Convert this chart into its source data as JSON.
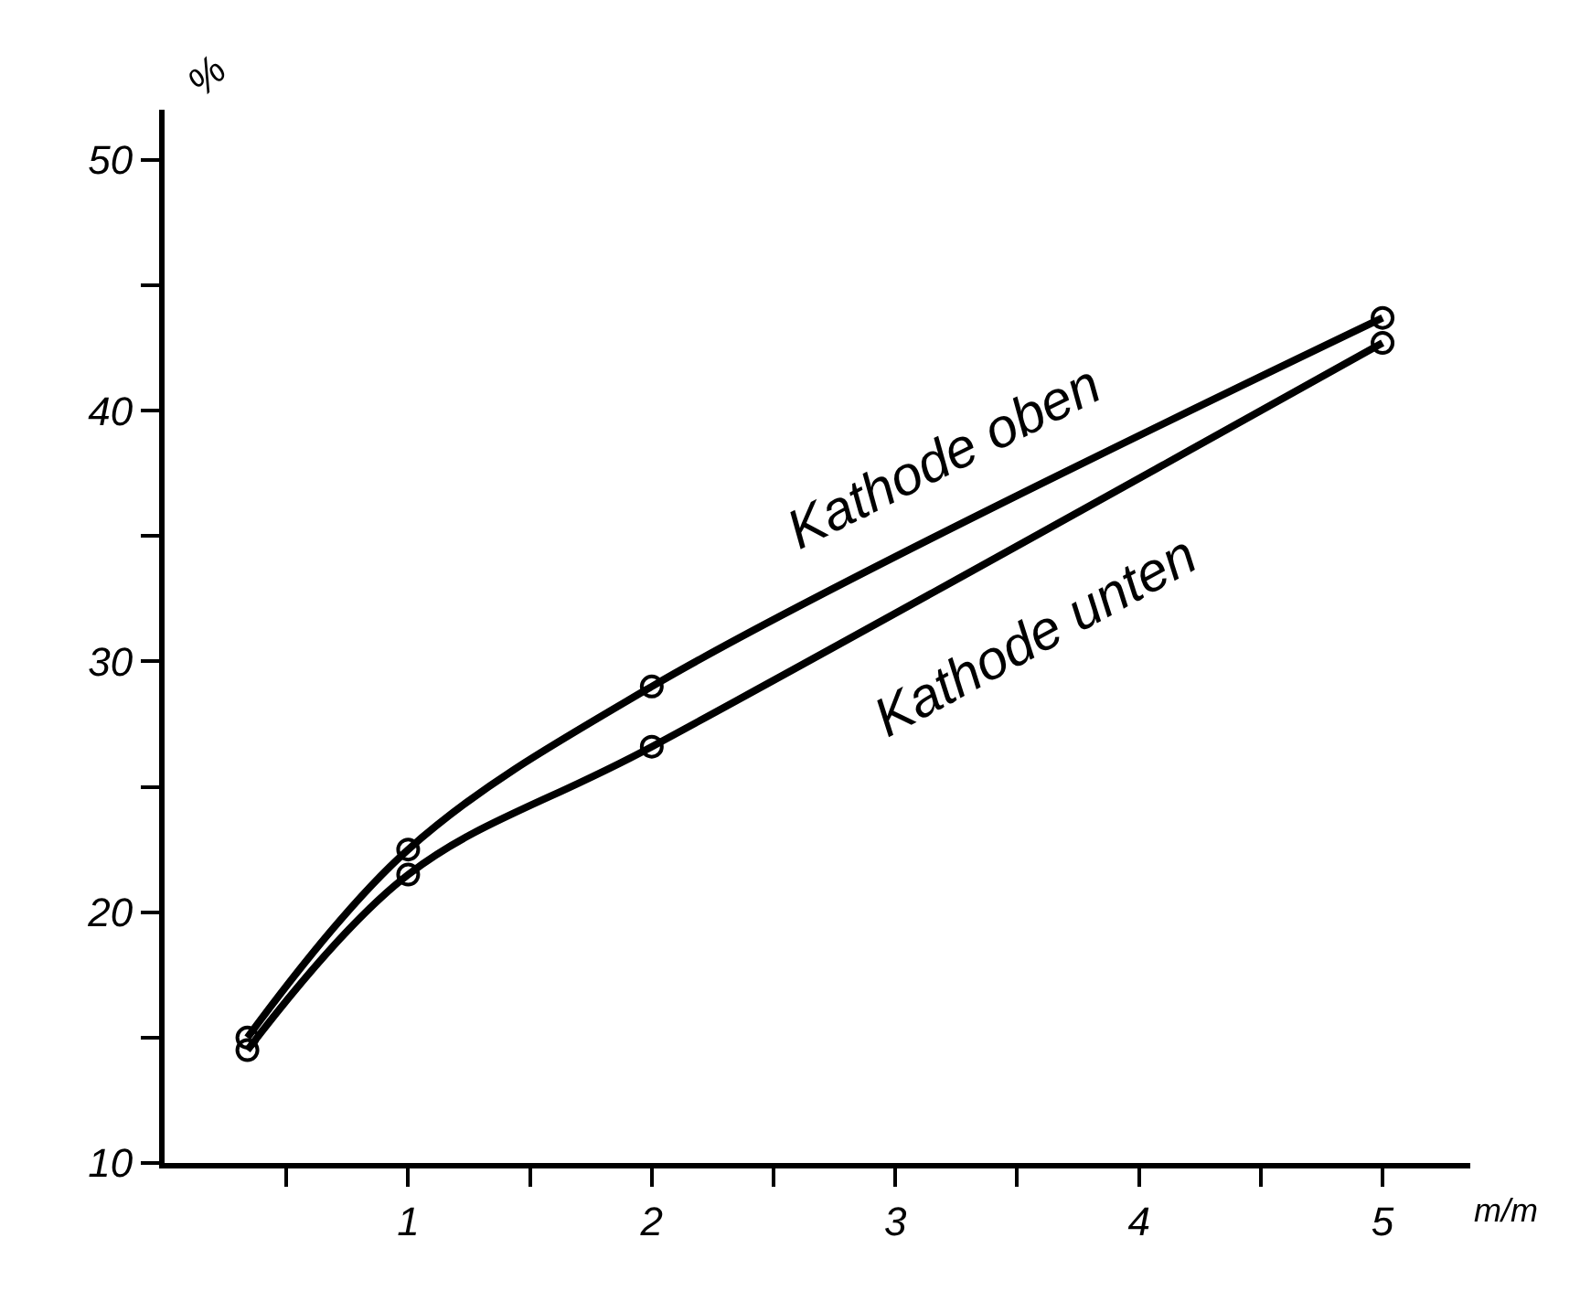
{
  "chart_data": {
    "type": "line",
    "xlabel": "m/m",
    "ylabel": "%",
    "x": [
      0.34,
      1,
      2,
      5
    ],
    "series": [
      {
        "name": "Kathode oben",
        "color": "#000000",
        "values": [
          15.0,
          22.5,
          29.0,
          43.7
        ]
      },
      {
        "name": "Kathode unten",
        "color": "#000000",
        "values": [
          14.5,
          21.5,
          26.6,
          42.7
        ]
      }
    ],
    "xlim": [
      0,
      5.36
    ],
    "ylim": [
      10,
      52
    ],
    "xticks": [
      {
        "value": 0.5,
        "label": null
      },
      1,
      {
        "value": 1.5,
        "label": null
      },
      2,
      {
        "value": 2.5,
        "label": null
      },
      3,
      {
        "value": 3.5,
        "label": null
      },
      4,
      {
        "value": 4.5,
        "label": null
      },
      5
    ],
    "yticks": [
      10,
      {
        "value": 15,
        "label": null
      },
      20,
      {
        "value": 25,
        "label": null
      },
      30,
      {
        "value": 35,
        "label": null
      },
      40,
      {
        "value": 45,
        "label": null
      },
      50
    ],
    "marker": "circle",
    "line_style": "solid",
    "legend": false
  }
}
